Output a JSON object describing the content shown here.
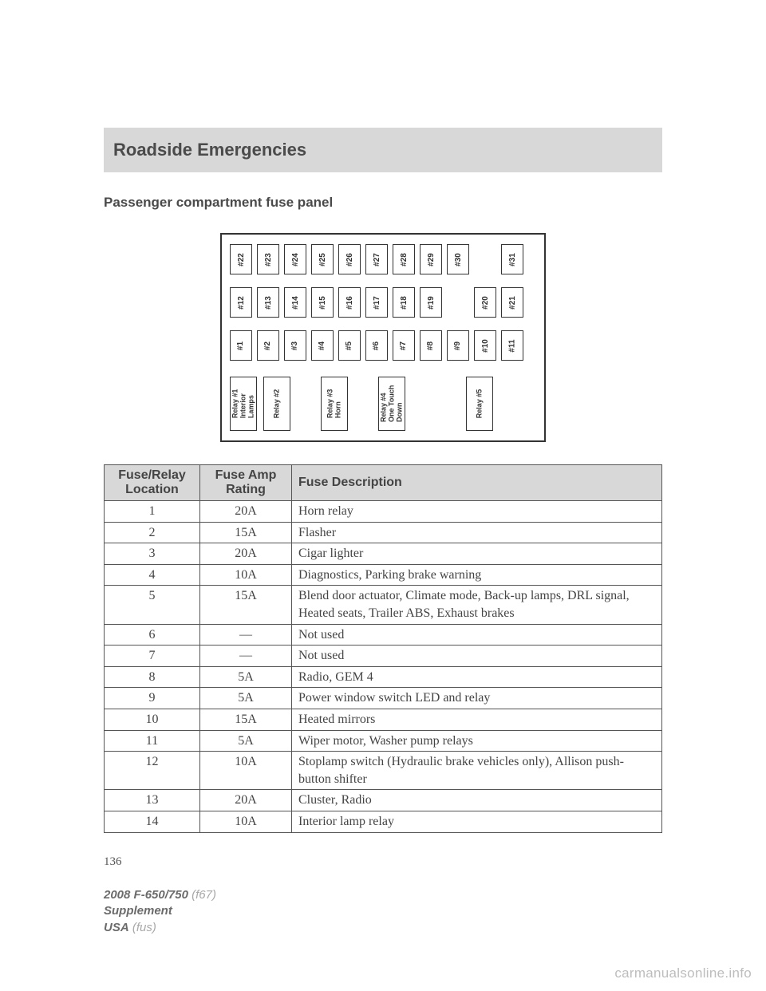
{
  "header": {
    "title": "Roadside Emergencies"
  },
  "subhead": "Passenger compartment fuse panel",
  "panel": {
    "row_top": [
      "#22",
      "#23",
      "#24",
      "#25",
      "#26",
      "#27",
      "#28",
      "#29",
      "#30",
      "#31"
    ],
    "row_mid": [
      "#12",
      "#13",
      "#14",
      "#15",
      "#16",
      "#17",
      "#18",
      "#19",
      "#20",
      "#21"
    ],
    "row_bot": [
      "#1",
      "#2",
      "#3",
      "#4",
      "#5",
      "#6",
      "#7",
      "#8",
      "#9",
      "#10",
      "#11"
    ],
    "relays": [
      "Relay #1\nInterior\nLamps",
      "Relay #2",
      "Relay #3\nHorn",
      "Relay #4\nOne Touch\nDown",
      "Relay #5"
    ]
  },
  "table": {
    "columns": [
      "Fuse/Relay\nLocation",
      "Fuse Amp\nRating",
      "Fuse Description"
    ],
    "rows": [
      [
        "1",
        "20A",
        "Horn relay"
      ],
      [
        "2",
        "15A",
        "Flasher"
      ],
      [
        "3",
        "20A",
        "Cigar lighter"
      ],
      [
        "4",
        "10A",
        "Diagnostics, Parking brake warning"
      ],
      [
        "5",
        "15A",
        "Blend door actuator, Climate mode, Back-up lamps, DRL signal, Heated seats, Trailer ABS, Exhaust brakes"
      ],
      [
        "6",
        "—",
        "Not used"
      ],
      [
        "7",
        "—",
        "Not used"
      ],
      [
        "8",
        "5A",
        "Radio, GEM 4"
      ],
      [
        "9",
        "5A",
        "Power window switch LED and relay"
      ],
      [
        "10",
        "15A",
        "Heated mirrors"
      ],
      [
        "11",
        "5A",
        "Wiper motor, Washer pump relays"
      ],
      [
        "12",
        "10A",
        "Stoplamp switch (Hydraulic brake vehicles only), Allison push-button shifter"
      ],
      [
        "13",
        "20A",
        "Cluster, Radio"
      ],
      [
        "14",
        "10A",
        "Interior lamp relay"
      ]
    ]
  },
  "page_number": "136",
  "footer": {
    "line1_bold": "2008 F-650/750",
    "line1_lite": "(f67)",
    "line2_bold": "Supplement",
    "line3_bold": "USA",
    "line3_lite": "(fus)"
  },
  "watermark": "carmanualsonline.info",
  "colors": {
    "header_bg": "#d8d8d8",
    "text": "#3a3a3a",
    "border": "#555555",
    "watermark": "#bdbdbd"
  }
}
